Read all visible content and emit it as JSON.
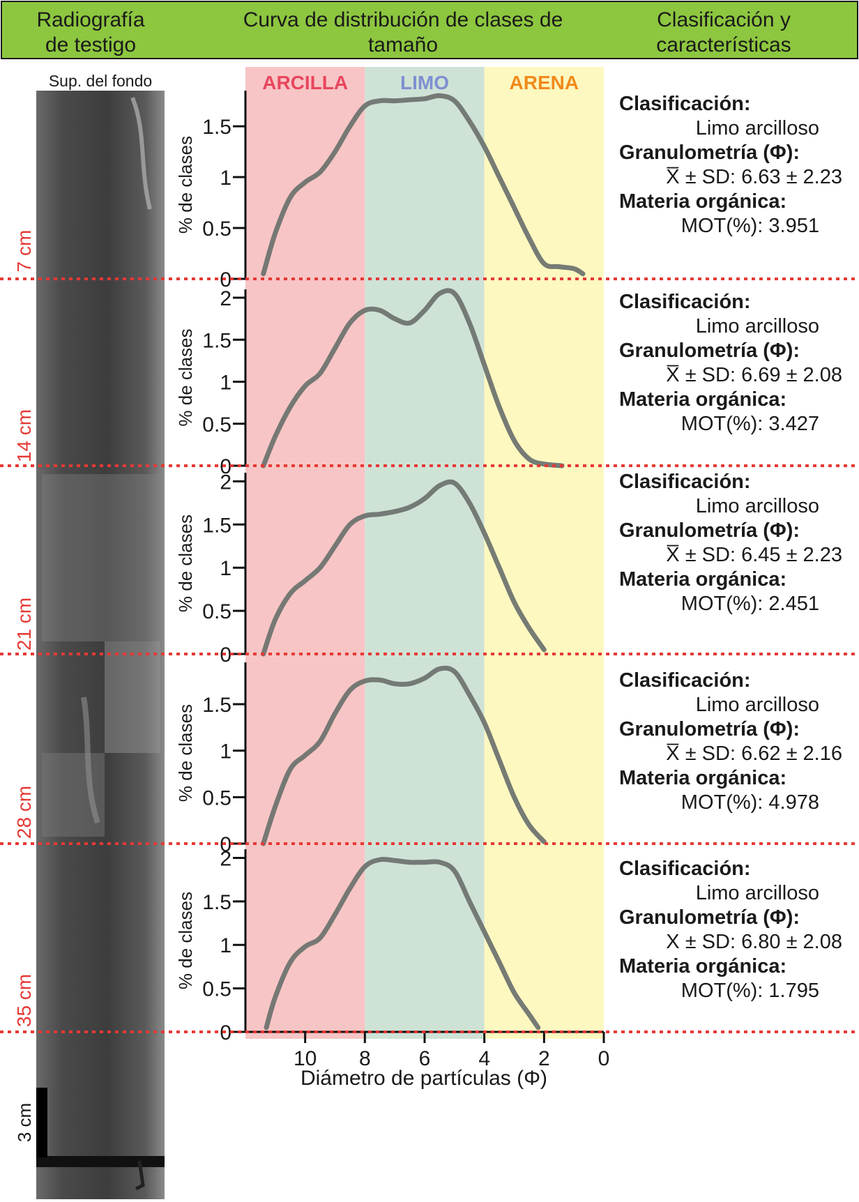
{
  "header": {
    "col1_line1": "Radiografía",
    "col1_line2": "de testigo",
    "col2_line1": "Curva de distribución de clases de",
    "col2_line2": "tamaño",
    "col3_line1": "Clasificación y",
    "col3_line2": "características"
  },
  "radiograph": {
    "top_label": "Sup. del fondo",
    "scale_label": "3 cm",
    "depth_labels": [
      "7 cm",
      "14 cm",
      "21 cm",
      "28 cm",
      "35 cm"
    ]
  },
  "zones": [
    {
      "label": "ARCILLA",
      "from": 12,
      "to": 8,
      "color": "#f7c5c5",
      "label_color": "#e8465e"
    },
    {
      "label": "LIMO",
      "from": 8,
      "to": 4,
      "color": "#cfe2d6",
      "label_color": "#7f8fd1"
    },
    {
      "label": "ARENA",
      "from": 4,
      "to": 0,
      "color": "#fdf8c0",
      "label_color": "#f08a1c"
    }
  ],
  "axis": {
    "ylabel": "% de clases",
    "xlabel": "Diámetro de partículas (Φ)",
    "x_ticks": [
      "10",
      "8",
      "6",
      "4",
      "2",
      "0"
    ],
    "x_tick_values": [
      10,
      8,
      6,
      4,
      2,
      0
    ]
  },
  "chart_data": [
    {
      "type": "line",
      "depth": "7 cm",
      "ylabel": "% de clases",
      "xlabel": "Diámetro de partículas (Φ)",
      "x_reversed": true,
      "xlim": [
        12,
        0
      ],
      "ylim": [
        0,
        1.85
      ],
      "y_ticks": [
        {
          "v": 0,
          "t": "0"
        },
        {
          "v": 0.5,
          "t": "0.5"
        },
        {
          "v": 1,
          "t": "1"
        },
        {
          "v": 1.5,
          "t": "1.5"
        }
      ],
      "x": [
        11.4,
        11,
        10.5,
        10,
        9.5,
        9,
        8.5,
        8,
        7.5,
        7,
        6.5,
        6,
        5.5,
        5,
        4.5,
        4,
        3.5,
        3,
        2.5,
        2,
        1.5,
        1,
        0.7
      ],
      "y": [
        0.05,
        0.45,
        0.8,
        0.95,
        1.05,
        1.25,
        1.5,
        1.7,
        1.75,
        1.75,
        1.76,
        1.77,
        1.8,
        1.75,
        1.55,
        1.3,
        1.0,
        0.7,
        0.4,
        0.15,
        0.12,
        0.1,
        0.05
      ]
    },
    {
      "type": "line",
      "depth": "14 cm",
      "ylabel": "% de clases",
      "xlabel": "Diámetro de partículas (Φ)",
      "x_reversed": true,
      "xlim": [
        12,
        0
      ],
      "ylim": [
        0,
        2.1
      ],
      "y_ticks": [
        {
          "v": 0,
          "t": "0"
        },
        {
          "v": 0.5,
          "t": "0.5"
        },
        {
          "v": 1,
          "t": "1"
        },
        {
          "v": 1.5,
          "t": "1.5"
        },
        {
          "v": 2,
          "t": "2"
        }
      ],
      "x": [
        11.4,
        11,
        10.5,
        10,
        9.5,
        9,
        8.5,
        8,
        7.5,
        7,
        6.5,
        6,
        5.5,
        5,
        4.5,
        4,
        3.5,
        3,
        2.5,
        2,
        1.4
      ],
      "y": [
        0.0,
        0.35,
        0.7,
        0.95,
        1.1,
        1.4,
        1.7,
        1.85,
        1.85,
        1.75,
        1.7,
        1.85,
        2.05,
        2.05,
        1.7,
        1.2,
        0.7,
        0.3,
        0.08,
        0.02,
        0.0
      ]
    },
    {
      "type": "line",
      "depth": "21 cm",
      "ylabel": "% de clases",
      "xlabel": "Diámetro de partículas (Φ)",
      "x_reversed": true,
      "xlim": [
        12,
        0
      ],
      "ylim": [
        0,
        2.1
      ],
      "y_ticks": [
        {
          "v": 0,
          "t": "0"
        },
        {
          "v": 0.5,
          "t": "0.5"
        },
        {
          "v": 1,
          "t": "1"
        },
        {
          "v": 1.5,
          "t": "1.5"
        },
        {
          "v": 2,
          "t": "2"
        }
      ],
      "x": [
        11.4,
        11,
        10.5,
        10,
        9.5,
        9,
        8.5,
        8,
        7.5,
        7,
        6.5,
        6,
        5.5,
        5,
        4.5,
        4,
        3.5,
        3,
        2.5,
        2
      ],
      "y": [
        0.0,
        0.4,
        0.7,
        0.85,
        1.0,
        1.25,
        1.5,
        1.6,
        1.62,
        1.65,
        1.7,
        1.8,
        1.95,
        1.98,
        1.75,
        1.4,
        1.0,
        0.6,
        0.3,
        0.05
      ]
    },
    {
      "type": "line",
      "depth": "28 cm",
      "ylabel": "% de clases",
      "xlabel": "Diámetro de partículas (Φ)",
      "x_reversed": true,
      "xlim": [
        12,
        0
      ],
      "ylim": [
        0,
        1.95
      ],
      "y_ticks": [
        {
          "v": 0,
          "t": "0"
        },
        {
          "v": 0.5,
          "t": "0.5"
        },
        {
          "v": 1,
          "t": "1"
        },
        {
          "v": 1.5,
          "t": "1.5"
        }
      ],
      "x": [
        11.4,
        11,
        10.5,
        10,
        9.5,
        9,
        8.5,
        8,
        7.5,
        7,
        6.5,
        6,
        5.5,
        5,
        4.5,
        4,
        3.5,
        3,
        2.5,
        2
      ],
      "y": [
        0.0,
        0.4,
        0.8,
        0.95,
        1.1,
        1.4,
        1.65,
        1.75,
        1.76,
        1.72,
        1.72,
        1.78,
        1.88,
        1.85,
        1.6,
        1.3,
        0.9,
        0.5,
        0.2,
        0.02
      ]
    },
    {
      "type": "line",
      "depth": "35 cm",
      "ylabel": "% de clases",
      "xlabel": "Diámetro de partículas (Φ)",
      "x_reversed": true,
      "xlim": [
        12,
        0
      ],
      "ylim": [
        0,
        2.1
      ],
      "y_ticks": [
        {
          "v": 0,
          "t": "0"
        },
        {
          "v": 0.5,
          "t": "0.5"
        },
        {
          "v": 1,
          "t": "1"
        },
        {
          "v": 1.5,
          "t": "1.5"
        },
        {
          "v": 2,
          "t": "2"
        }
      ],
      "x": [
        11.3,
        11,
        10.5,
        10,
        9.5,
        9,
        8.5,
        8,
        7.5,
        7,
        6.5,
        6,
        5.5,
        5,
        4.5,
        4,
        3.5,
        3,
        2.5,
        2.2
      ],
      "y": [
        0.05,
        0.4,
        0.8,
        0.98,
        1.08,
        1.35,
        1.65,
        1.9,
        1.98,
        1.97,
        1.95,
        1.95,
        1.95,
        1.85,
        1.5,
        1.15,
        0.8,
        0.45,
        0.2,
        0.05
      ]
    }
  ],
  "classification": [
    {
      "title": "Clasificación:",
      "value": "Limo arcilloso",
      "gran_title": "Granulometría (Φ):",
      "stats": "X̅ ± SD: 6.63 ± 2.23",
      "mo_title": "Materia orgánica:",
      "mot": "MOT(%): 3.951"
    },
    {
      "title": "Clasificación:",
      "value": "Limo arcilloso",
      "gran_title": "Granulometría (Φ):",
      "stats": "X̅ ± SD: 6.69 ± 2.08",
      "mo_title": "Materia orgánica:",
      "mot": "MOT(%): 3.427"
    },
    {
      "title": "Clasificación:",
      "value": "Limo arcilloso",
      "gran_title": "Granulometría (Φ):",
      "stats": "X̅ ± SD: 6.45 ± 2.23",
      "mo_title": "Materia orgánica:",
      "mot": "MOT(%): 2.451"
    },
    {
      "title": "Clasificación:",
      "value": "Limo arcilloso",
      "gran_title": "Granulometría (Φ):",
      "stats": "X̅ ± SD: 6.62 ± 2.16",
      "mo_title": "Materia orgánica:",
      "mot": "MOT(%): 4.978"
    },
    {
      "title": "Clasificación:",
      "value": "Limo arcilloso",
      "gran_title": "Granulometría (Φ):",
      "stats": "X ± SD: 6.80 ± 2.08",
      "mo_title": "Materia orgánica:",
      "mot": "MOT(%): 1.795"
    }
  ],
  "colors": {
    "header_bg": "#8dc63f",
    "curve": "#6f7470",
    "dotted_line": "#e53935"
  }
}
